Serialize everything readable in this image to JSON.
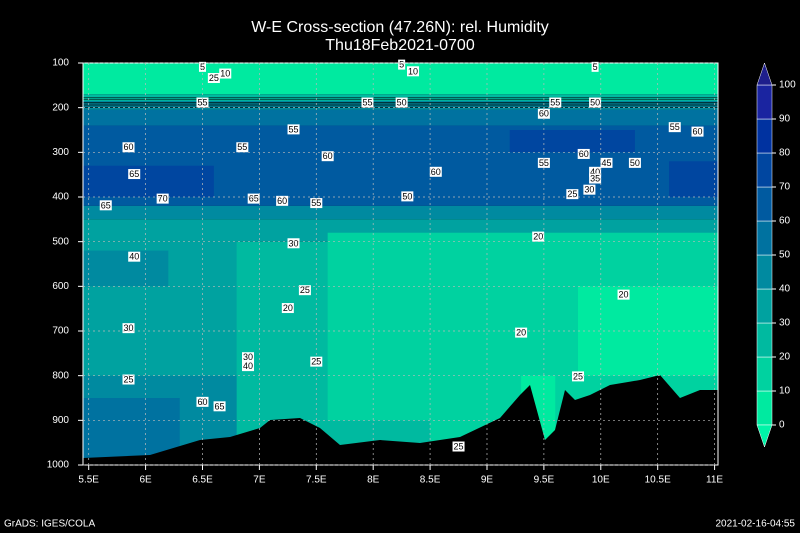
{
  "chart_data": {
    "type": "contour",
    "title": "W-E Cross-section (47.26N): rel. Humidity",
    "subtitle": "Thu18Feb2021-0700",
    "xlim": [
      5.45,
      11.03
    ],
    "xticks": [
      {
        "value": 5.5,
        "label": "5.5E"
      },
      {
        "value": 6,
        "label": "6E"
      },
      {
        "value": 6.5,
        "label": "6.5E"
      },
      {
        "value": 7,
        "label": "7E"
      },
      {
        "value": 7.5,
        "label": "7.5E"
      },
      {
        "value": 8,
        "label": "8E"
      },
      {
        "value": 8.5,
        "label": "8.5E"
      },
      {
        "value": 9,
        "label": "9E"
      },
      {
        "value": 9.5,
        "label": "9.5E"
      },
      {
        "value": 10,
        "label": "10E"
      },
      {
        "value": 10.5,
        "label": "10.5E"
      },
      {
        "value": 11,
        "label": "11E"
      }
    ],
    "ylim": [
      100,
      1000
    ],
    "yticks": [
      100,
      200,
      300,
      400,
      500,
      600,
      700,
      800,
      900,
      1000
    ],
    "grid": true,
    "levels": [
      0,
      10,
      20,
      30,
      40,
      50,
      60,
      70,
      80,
      90,
      100
    ],
    "colors": [
      "#00eaa0",
      "#00d2a0",
      "#00baa0",
      "#00a2a0",
      "#008aa0",
      "#0072a0",
      "#005aa0",
      "#0046a0",
      "#0032a0",
      "#1a24a0"
    ],
    "under_color": "#00f5a8",
    "over_color": "#1e1e8c",
    "contour_labels": [
      5,
      10,
      25,
      55,
      5,
      10,
      50,
      55,
      5,
      50,
      55,
      60,
      55,
      60,
      55,
      60,
      65,
      70,
      65,
      65,
      60,
      55,
      50,
      60,
      55,
      60,
      45,
      50,
      55,
      60,
      40,
      35,
      30,
      25,
      20,
      20,
      40,
      30,
      25,
      20,
      30,
      25,
      30,
      40,
      25,
      60,
      65,
      20,
      25,
      25
    ],
    "footer_left": "GrADS: IGES/COLA",
    "footer_right": "2021-02-16-04:55"
  }
}
